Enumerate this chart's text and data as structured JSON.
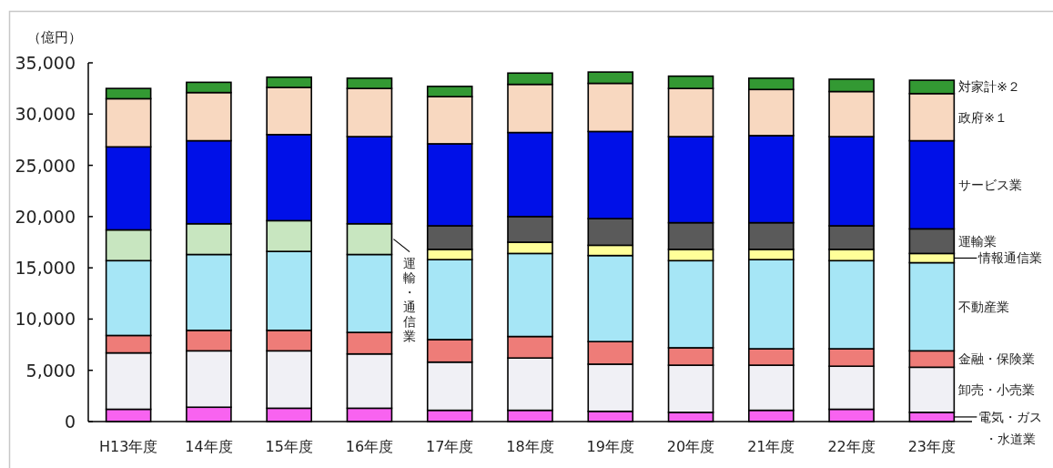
{
  "chart_data": {
    "type": "bar",
    "stacked": true,
    "ylabel": "（億円）",
    "legend": "right",
    "categories": [
      "H13年度",
      "14年度",
      "15年度",
      "16年度",
      "17年度",
      "18年度",
      "19年度",
      "20年度",
      "21年度",
      "22年度",
      "23年度"
    ],
    "ylim": [
      0,
      35000
    ],
    "yticks": [
      0,
      {
        "value": 5000,
        "label": "5,000"
      },
      {
        "value": 10000,
        "label": "10,000"
      },
      {
        "value": 15000,
        "label": "15,000"
      },
      {
        "value": 20000,
        "label": "20,000"
      },
      {
        "value": 25000,
        "label": "25,000"
      },
      {
        "value": 30000,
        "label": "30,000"
      },
      {
        "value": 35000,
        "label": "35,000"
      }
    ],
    "series": [
      {
        "name": "電気・ガス・水道業",
        "color": "#f863f0",
        "values": [
          1200,
          1400,
          1300,
          1300,
          1100,
          1100,
          1000,
          900,
          1100,
          1200,
          900
        ]
      },
      {
        "name": "卸売・小売業",
        "color": "#f0f0f5",
        "values": [
          5500,
          5500,
          5600,
          5300,
          4700,
          5100,
          4600,
          4600,
          4400,
          4200,
          4400
        ]
      },
      {
        "name": "金融・保険業",
        "color": "#ee7c78",
        "values": [
          1700,
          2000,
          2000,
          2100,
          2200,
          2100,
          2200,
          1700,
          1600,
          1700,
          1600
        ]
      },
      {
        "name": "不動産業",
        "color": "#a6e6f6",
        "values": [
          7300,
          7400,
          7700,
          7600,
          7800,
          8100,
          8400,
          8500,
          8700,
          8600,
          8600
        ]
      },
      {
        "name": "運輸・通信業",
        "color": "#c8e6c0",
        "values": [
          3000,
          3000,
          3000,
          3000,
          null,
          null,
          null,
          null,
          null,
          null,
          null
        ]
      },
      {
        "name": "情報通信業",
        "color": "#ffff99",
        "values": [
          null,
          null,
          null,
          null,
          1000,
          1100,
          1000,
          1100,
          1000,
          1100,
          900
        ]
      },
      {
        "name": "運輸業",
        "color": "#5a5a5a",
        "values": [
          null,
          null,
          null,
          null,
          2300,
          2500,
          2600,
          2600,
          2600,
          2300,
          2400
        ]
      },
      {
        "name": "サービス業",
        "color": "#0010e8",
        "values": [
          8100,
          8100,
          8400,
          8500,
          8000,
          8200,
          8500,
          8400,
          8500,
          8700,
          8600
        ]
      },
      {
        "name": "政府※１",
        "color": "#f8d8c0",
        "values": [
          4700,
          4700,
          4600,
          4700,
          4600,
          4700,
          4700,
          4700,
          4500,
          4400,
          4600
        ]
      },
      {
        "name": "対家計※２",
        "color": "#339933",
        "values": [
          1000,
          1000,
          1000,
          1000,
          1000,
          1100,
          1100,
          1200,
          1100,
          1200,
          1300
        ]
      }
    ]
  }
}
